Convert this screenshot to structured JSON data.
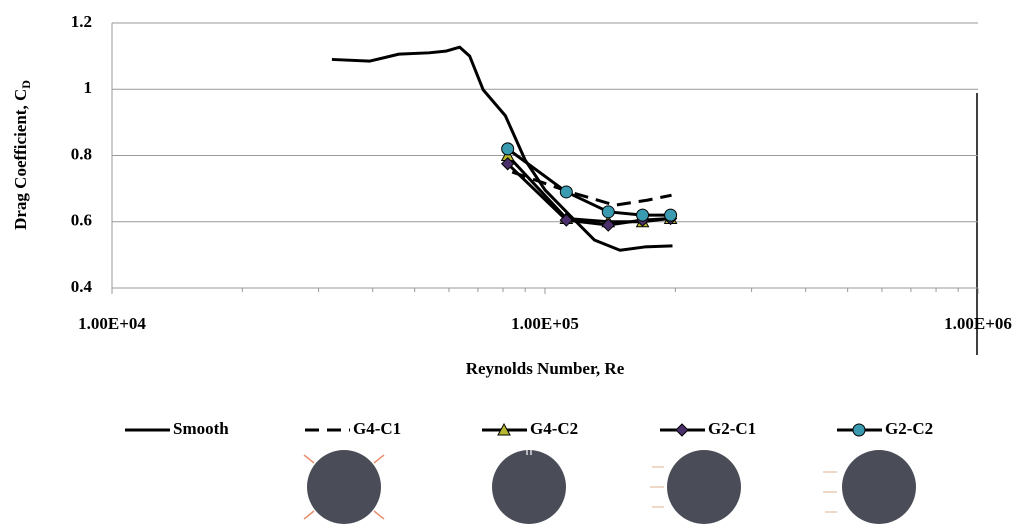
{
  "chart_data": {
    "type": "line",
    "y_label": {
      "text": "Drag Coefficient, C",
      "subscript": "D"
    },
    "x_label": "Reynolds Number, Re",
    "xscale": "log",
    "xlim": [
      10000,
      1000000
    ],
    "xticks": [
      {
        "value": 10000,
        "label": "1.00E+04"
      },
      {
        "value": 100000,
        "label": "1.00E+05"
      },
      {
        "value": 1000000,
        "label": "1.00E+06"
      }
    ],
    "ylim": [
      0.4,
      1.2
    ],
    "yticks": [
      0.4,
      0.6,
      0.8,
      1,
      1.2
    ],
    "grid": true,
    "series": [
      {
        "name": "Smooth",
        "color": "#000000",
        "dash": false,
        "marker": "none",
        "x": [
          32200,
          39400,
          46000,
          54000,
          59000,
          63500,
          67000,
          72000,
          81000,
          90000,
          100000,
          114000,
          130000,
          149000,
          170000,
          197000
        ],
        "values": [
          1.09,
          1.085,
          1.106,
          1.11,
          1.115,
          1.127,
          1.1,
          0.998,
          0.92,
          0.786,
          0.696,
          0.62,
          0.545,
          0.514,
          0.524,
          0.527
        ]
      },
      {
        "name": "G4-C1",
        "color": "#000000",
        "dash": true,
        "marker": "none",
        "x": [
          84000,
          114000,
          145000,
          172000,
          196000
        ],
        "values": [
          0.75,
          0.69,
          0.65,
          0.665,
          0.68
        ]
      },
      {
        "name": "G4-C2",
        "color": "#000000",
        "dash": false,
        "marker": "triangle",
        "marker_color": "#b8b830",
        "x": [
          82000,
          112000,
          140000,
          168000,
          195000
        ],
        "values": [
          0.8,
          0.61,
          0.6,
          0.6,
          0.61
        ]
      },
      {
        "name": "G2-C1",
        "color": "#000000",
        "dash": false,
        "marker": "diamond",
        "marker_color": "#4b2f6a",
        "x": [
          82000,
          112000,
          140000,
          168000,
          195000
        ],
        "values": [
          0.775,
          0.605,
          0.59,
          0.605,
          0.61
        ]
      },
      {
        "name": "G2-C2",
        "color": "#000000",
        "dash": false,
        "marker": "circle",
        "marker_color": "#3a9ab0",
        "x": [
          82000,
          112000,
          140000,
          168000,
          195000
        ],
        "values": [
          0.82,
          0.69,
          0.63,
          0.62,
          0.62
        ]
      }
    ]
  }
}
